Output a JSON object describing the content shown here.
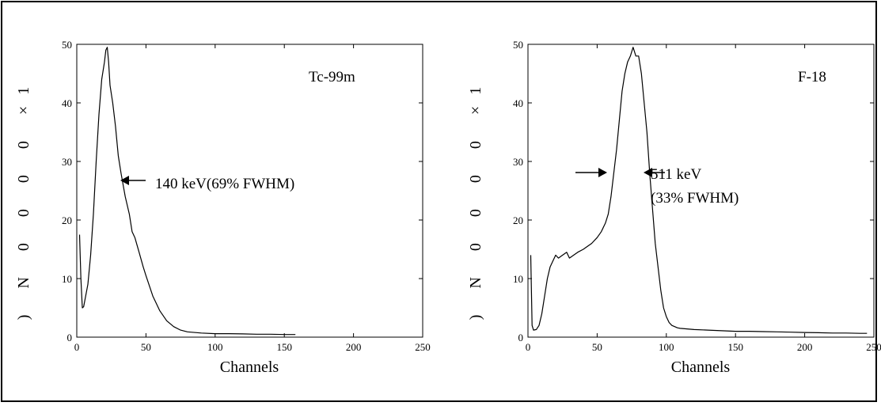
{
  "chart_data": [
    {
      "type": "line",
      "xlabel": "Channels",
      "ylabel": ") N 0 0 0 0 ×1",
      "xlim": [
        0,
        250
      ],
      "ylim": [
        0,
        50
      ],
      "xticks": [
        "0",
        "50",
        "100",
        "150",
        "200",
        "250"
      ],
      "yticks": [
        "0",
        "10",
        "20",
        "30",
        "40",
        "50"
      ],
      "grid": false,
      "annotations": [
        {
          "text": "Tc-99m",
          "kind": "label"
        },
        {
          "text": "140 keV(69% FWHM)",
          "kind": "arrow-label"
        }
      ],
      "series": [
        {
          "x": [
            2,
            3,
            4,
            5,
            6,
            8,
            10,
            12,
            14,
            16,
            18,
            20,
            21,
            22,
            23,
            24,
            26,
            28,
            30,
            32,
            35,
            38,
            40,
            42,
            45,
            48,
            50,
            55,
            60,
            65,
            70,
            75,
            80,
            90,
            100,
            110,
            120,
            130,
            140,
            150,
            158
          ],
          "y": [
            17.5,
            10,
            5,
            5.2,
            6.5,
            9,
            14,
            21,
            30,
            38,
            44,
            47,
            49,
            49.5,
            47,
            43,
            40,
            36,
            31,
            28,
            24,
            21,
            18,
            17,
            14.5,
            12,
            10.5,
            7,
            4.5,
            2.8,
            1.8,
            1.2,
            0.9,
            0.7,
            0.6,
            0.6,
            0.55,
            0.5,
            0.5,
            0.45,
            0.45
          ]
        }
      ]
    },
    {
      "type": "line",
      "xlabel": "Channels",
      "ylabel": ") N 0 0 0 0 ×1",
      "xlim": [
        0,
        250
      ],
      "ylim": [
        0,
        50
      ],
      "xticks": [
        "0",
        "50",
        "100",
        "150",
        "200",
        "250"
      ],
      "yticks": [
        "0",
        "10",
        "20",
        "30",
        "40",
        "50"
      ],
      "grid": false,
      "annotations": [
        {
          "text": "F-18",
          "kind": "label"
        },
        {
          "text": "511 keV",
          "kind": "arrow-label"
        },
        {
          "text": "(33% FWHM)",
          "kind": "label"
        }
      ],
      "series": [
        {
          "x": [
            2,
            3,
            4,
            6,
            8,
            10,
            12,
            14,
            16,
            18,
            20,
            22,
            25,
            28,
            30,
            33,
            36,
            40,
            43,
            46,
            50,
            53,
            56,
            58,
            60,
            62,
            64,
            66,
            68,
            70,
            72,
            74,
            76,
            78,
            80,
            82,
            84,
            86,
            88,
            90,
            92,
            94,
            96,
            98,
            100,
            102,
            104,
            106,
            108,
            110,
            115,
            120,
            130,
            140,
            150,
            160,
            170,
            180,
            190,
            200,
            210,
            220,
            230,
            240,
            245
          ],
          "y": [
            14,
            2,
            1.2,
            1.3,
            2,
            4,
            7,
            10,
            12,
            13,
            14,
            13.5,
            14,
            14.5,
            13.5,
            14,
            14.5,
            15,
            15.5,
            16,
            17,
            18,
            19.5,
            21,
            24,
            28,
            32,
            37,
            42,
            45,
            47,
            48,
            49.5,
            48,
            48,
            45,
            40,
            35,
            28,
            22,
            16,
            12,
            8,
            5,
            3.5,
            2.5,
            2,
            1.8,
            1.6,
            1.5,
            1.4,
            1.3,
            1.2,
            1.1,
            1,
            1,
            0.95,
            0.9,
            0.85,
            0.8,
            0.75,
            0.7,
            0.7,
            0.65,
            0.65
          ]
        }
      ]
    }
  ]
}
